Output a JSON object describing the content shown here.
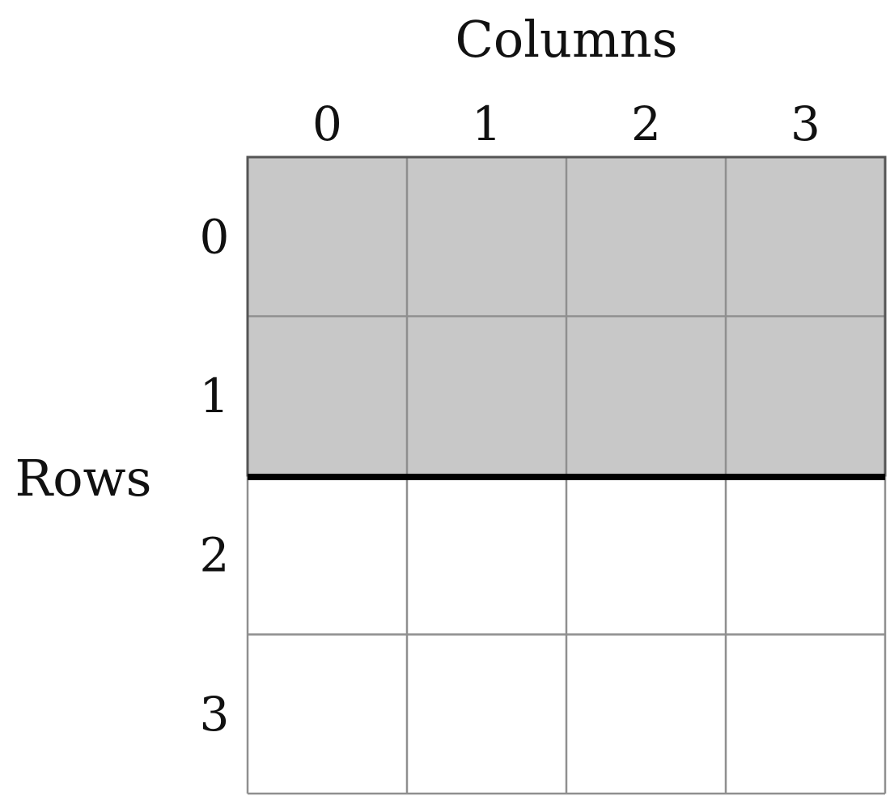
{
  "axes": {
    "column_title": "Columns",
    "row_title": "Rows"
  },
  "grid": {
    "rows": 4,
    "cols": 4,
    "column_labels": [
      "0",
      "1",
      "2",
      "3"
    ],
    "row_labels": [
      "0",
      "1",
      "2",
      "3"
    ],
    "shaded_rows": [
      0,
      1
    ],
    "split_after_row": 1
  },
  "colors": {
    "shaded_fill": "#c8c8c8",
    "empty_fill": "#ffffff",
    "grid_line": "#8f8f8f",
    "frame_line": "#555555",
    "split_line": "#000000"
  }
}
